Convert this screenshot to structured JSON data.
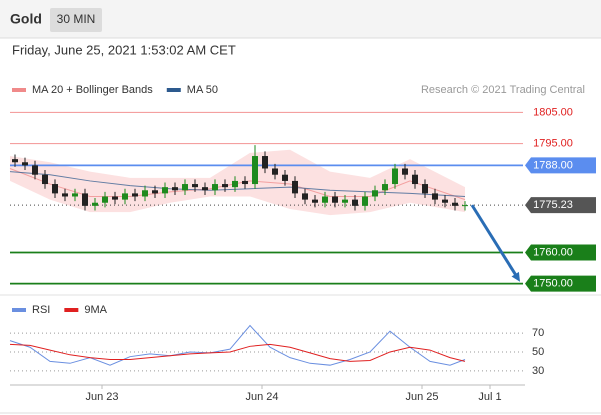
{
  "chart_data": {
    "type": "candlestick",
    "title": "Gold",
    "interval": "30 MIN",
    "subtitle": "Friday, June 25, 2021 1:53:02 AM CET",
    "credit": "Research © 2021 Trading Central",
    "x": [
      0.5,
      1.5,
      2.5,
      3.5,
      4.5,
      5.5,
      6.5,
      7.5,
      8.5,
      9.5,
      10.5,
      11.5,
      12.5,
      13.5,
      14.5,
      15.5,
      16.5,
      17.5,
      18.5,
      19.5,
      20.5,
      21.5,
      22.5,
      23.5,
      24.5,
      25.5,
      26.5,
      27.5,
      28.5,
      29.5,
      30.5,
      31.5,
      32.5,
      33.5,
      34.5,
      35.5,
      36.5,
      37.5,
      38.5,
      39.5,
      40.5,
      41.5,
      42.5,
      43.5,
      44.5,
      45.5
    ],
    "open": [
      1790,
      1789,
      1788,
      1785,
      1782,
      1779,
      1778,
      1779,
      1775,
      1776,
      1778,
      1777,
      1779,
      1778,
      1780,
      1779,
      1781,
      1780,
      1782,
      1781,
      1780,
      1782,
      1781,
      1783,
      1782,
      1791,
      1787,
      1785,
      1783,
      1779,
      1777,
      1776,
      1778,
      1776,
      1777,
      1775,
      1778,
      1780,
      1782,
      1787,
      1785,
      1782,
      1779,
      1777,
      1776,
      1775
    ],
    "high": [
      1791.5,
      1790.5,
      1789.5,
      1786.5,
      1783.5,
      1780.5,
      1780.5,
      1780.5,
      1777.5,
      1779.5,
      1779.5,
      1780.5,
      1780.5,
      1781.5,
      1781.5,
      1782.5,
      1782.5,
      1783.5,
      1783.5,
      1782.5,
      1783.5,
      1783.5,
      1784.5,
      1784.5,
      1794.5,
      1792.5,
      1788.5,
      1786.5,
      1784.5,
      1780.5,
      1778.5,
      1779.5,
      1779.5,
      1778.5,
      1778.5,
      1779.5,
      1781.5,
      1783.5,
      1788.5,
      1788.5,
      1786.5,
      1783.5,
      1780.5,
      1778.5,
      1777.5,
      1776.5
    ],
    "low": [
      1787.5,
      1786.5,
      1783.5,
      1780.5,
      1777.5,
      1776.5,
      1776.5,
      1773.5,
      1773.5,
      1774.5,
      1775.5,
      1775.5,
      1776.5,
      1776.5,
      1777.5,
      1777.5,
      1778.5,
      1778.5,
      1779.5,
      1778.5,
      1778.5,
      1779.5,
      1779.5,
      1780.5,
      1780.5,
      1785.5,
      1783.5,
      1781.5,
      1777.5,
      1775.5,
      1774.5,
      1774.5,
      1774.5,
      1774.5,
      1773.5,
      1773.5,
      1776.5,
      1778.5,
      1780.5,
      1783.5,
      1780.5,
      1777.5,
      1775.5,
      1774.5,
      1773.5,
      1773.5
    ],
    "close": [
      1789,
      1788,
      1785,
      1782,
      1779,
      1778,
      1779,
      1775,
      1776,
      1778,
      1777,
      1779,
      1778,
      1780,
      1779,
      1781,
      1780,
      1782,
      1781,
      1780,
      1782,
      1781,
      1783,
      1782,
      1791,
      1787,
      1785,
      1783,
      1779,
      1777,
      1776,
      1778,
      1776,
      1777,
      1775,
      1778,
      1780,
      1782,
      1787,
      1785,
      1782,
      1779,
      1777,
      1776,
      1775,
      1775.23
    ],
    "up_color": "#1e8a1e",
    "down_color": "#222222",
    "xlim": [
      0,
      51.5
    ],
    "ylim": [
      1747,
      1809
    ],
    "xticks": [
      {
        "value": 9.2,
        "label": "Jun 23"
      },
      {
        "value": 25.2,
        "label": "Jun 24"
      },
      {
        "value": 41.2,
        "label": "Jun 25"
      },
      {
        "value": 48,
        "label": "Jul 1"
      }
    ],
    "overlays": [
      {
        "name": "MA 20 + Bollinger Bands",
        "color": "#f08a8a",
        "band_color": "#fbd9d9",
        "x": [
          0,
          4,
          8,
          12,
          16,
          20,
          24,
          28,
          32,
          36,
          40,
          45.5
        ],
        "values": [
          1787,
          1782,
          1778,
          1778,
          1779.5,
          1780.5,
          1783,
          1782,
          1778,
          1778,
          1783,
          1777
        ],
        "upper": [
          1791,
          1789,
          1786,
          1784,
          1784,
          1784,
          1792,
          1793,
          1786,
          1784,
          1790,
          1781
        ],
        "lower": [
          1783,
          1777,
          1773,
          1773,
          1776,
          1778,
          1778,
          1774,
          1772,
          1773,
          1776,
          1773
        ]
      },
      {
        "name": "MA 50",
        "color": "#2d5a8e",
        "x": [
          0,
          4,
          8,
          12,
          16,
          20,
          24,
          28,
          32,
          36,
          40,
          45.5
        ],
        "values": [
          1786,
          1785,
          1783,
          1781.5,
          1780.5,
          1780,
          1780.5,
          1781,
          1780,
          1779.5,
          1779,
          1778
        ]
      }
    ],
    "levels": [
      {
        "value": 1805,
        "label": "1805.00",
        "color": "#f4a0a0",
        "text_color": "#e02020",
        "boxed": false,
        "dotted": false
      },
      {
        "value": 1795,
        "label": "1795.00",
        "color": "#f4a0a0",
        "text_color": "#e02020",
        "boxed": false,
        "dotted": false
      },
      {
        "value": 1788,
        "label": "1788.00",
        "color": "#5b8def",
        "text_color": "#ffffff",
        "boxed": true,
        "dotted": false
      },
      {
        "value": 1775.23,
        "color": "#555555",
        "text_color": "#ffffff",
        "boxed": true,
        "dotted": true
      },
      {
        "value": 1760,
        "label": "1760.00",
        "color": "#1a7f1a",
        "text_color": "#ffffff",
        "boxed": true,
        "dotted": false
      },
      {
        "value": 1750,
        "label": "1750.00",
        "color": "#1a7f1a",
        "text_color": "#ffffff",
        "boxed": true,
        "dotted": false
      }
    ],
    "arrow": {
      "from": [
        46.2,
        1775.23
      ],
      "to": [
        51,
        1750.6
      ],
      "color": "#2a6db5"
    },
    "rsi": {
      "ylim": [
        15,
        86
      ],
      "yticks": [
        70,
        50,
        30
      ],
      "series": [
        {
          "name": "RSI",
          "color": "#6a8fe0",
          "x": [
            0,
            2,
            4,
            6,
            8,
            10,
            12,
            14,
            16,
            18,
            20,
            22,
            24,
            26,
            28,
            30,
            32,
            34,
            36,
            38,
            40,
            42,
            44,
            45.5
          ],
          "values": [
            62,
            55,
            40,
            38,
            44,
            36,
            45,
            48,
            46,
            50,
            49,
            53,
            78,
            55,
            44,
            38,
            36,
            42,
            50,
            72,
            55,
            40,
            36,
            42
          ]
        },
        {
          "name": "9MA",
          "color": "#e02020",
          "x": [
            0,
            2,
            4,
            6,
            8,
            10,
            12,
            14,
            16,
            18,
            20,
            22,
            24,
            26,
            28,
            30,
            32,
            34,
            36,
            38,
            40,
            42,
            44,
            45.5
          ],
          "values": [
            58,
            57,
            52,
            47,
            44,
            42,
            42,
            44,
            46,
            48,
            49,
            50,
            56,
            58,
            55,
            49,
            43,
            40,
            41,
            50,
            55,
            52,
            44,
            40
          ]
        }
      ]
    }
  }
}
